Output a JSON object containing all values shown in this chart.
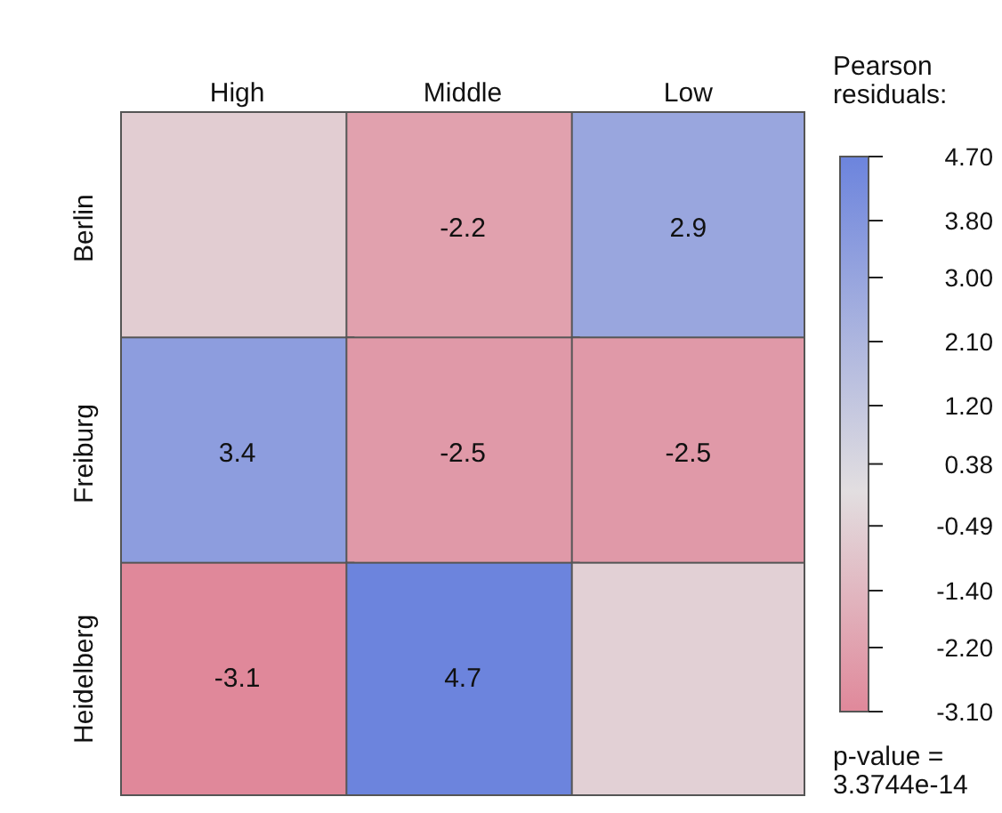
{
  "chart_data": {
    "type": "heatmap",
    "categories": [
      "High",
      "Middle",
      "Low"
    ],
    "y_categories": [
      "Berlin",
      "Freiburg",
      "Heidelberg"
    ],
    "cells": [
      [
        -0.6,
        -2.2,
        2.9
      ],
      [
        3.4,
        -2.5,
        -2.5
      ],
      [
        -3.1,
        4.7,
        -0.5
      ]
    ],
    "cell_labels": [
      [
        null,
        "-2.2",
        "2.9"
      ],
      [
        "3.4",
        "-2.5",
        "-2.5"
      ],
      [
        "-3.1",
        "4.7",
        null
      ]
    ],
    "clabel": "Pearson residuals:",
    "clim": [
      -3.1,
      4.7
    ],
    "cticks": [
      {
        "value": 4.7,
        "label": "4.70"
      },
      {
        "value": 3.8,
        "label": "3.80"
      },
      {
        "value": 3.0,
        "label": "3.00"
      },
      {
        "value": 2.1,
        "label": "2.10"
      },
      {
        "value": 1.2,
        "label": "1.20"
      },
      0.38,
      -0.49,
      {
        "value": -1.4,
        "label": "-1.40"
      },
      {
        "value": -2.2,
        "label": "-2.20"
      },
      {
        "value": -3.1,
        "label": "-3.10"
      }
    ],
    "annotations": [
      "p-value = 3.3744e-14"
    ]
  }
}
